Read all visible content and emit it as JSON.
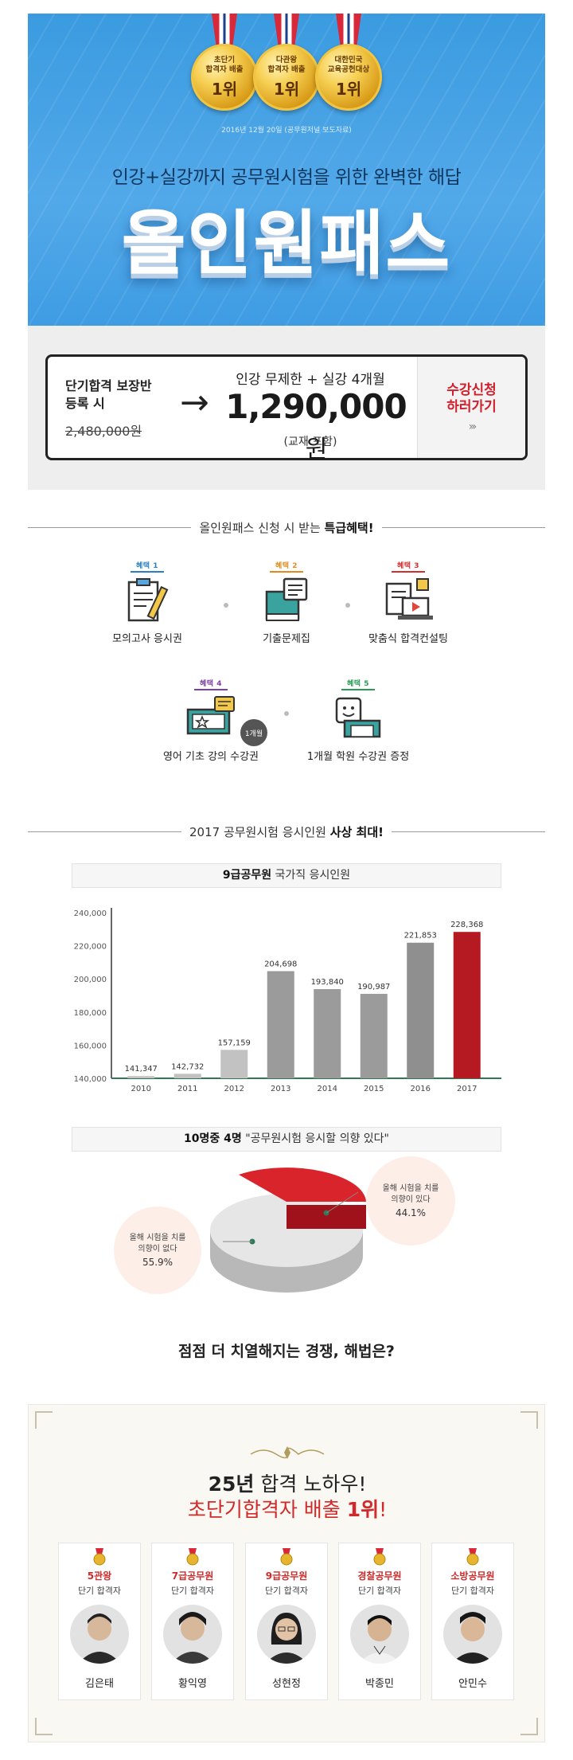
{
  "hero": {
    "medals": [
      {
        "text": "초단기\n합격자 배출",
        "rank": "1위"
      },
      {
        "text": "다관왕\n합격자 배출",
        "rank": "1위"
      },
      {
        "text": "대한민국\n교육공헌대상",
        "rank": "1위"
      }
    ],
    "note": "2016년 12월 20일 (공무원저널 보도자료)",
    "subtitle": "인강+실강까지 공무원시험을 위한 완벽한 해답",
    "title": "올인원패스"
  },
  "price": {
    "left_label": "단기합격 보장반\n등록 시",
    "old_price": "2,480,000원",
    "arrow": "→",
    "offer": "인강 무제한 + 실강 4개월",
    "new_price": "1,290,000",
    "unit": "원",
    "included": "(교재 포함)",
    "cta": "수강신청\n하러가기",
    "cta_arrows": "›››"
  },
  "benefits_header": {
    "pre": "올인원패스 신청 시 받는 ",
    "bold": "특급혜택!"
  },
  "benefits": [
    {
      "badge": "혜택 1",
      "label": "모의고사 응시권",
      "color": "#2b7fc3"
    },
    {
      "badge": "혜택 2",
      "label": "기출문제집",
      "color": "#e38a1f"
    },
    {
      "badge": "혜택 3",
      "label": "맞춤식 합격컨설팅",
      "color": "#d62d2d"
    },
    {
      "badge": "혜택 4",
      "label": "영어 기초 강의 수강권",
      "color": "#7b3fa6",
      "tag": "1개월"
    },
    {
      "badge": "혜택 5",
      "label": "1개월 학원 수강권 증정",
      "color": "#2a9a55"
    }
  ],
  "stats_header": {
    "pre": "2017 공무원시험 응시인원 ",
    "bold": "사상 최대!"
  },
  "bar_title": {
    "bold": "9급공무원",
    "rest": " 국가직 응시인원"
  },
  "chart_data": {
    "type": "bar",
    "categories": [
      "2010",
      "2011",
      "2012",
      "2013",
      "2014",
      "2015",
      "2016",
      "2017"
    ],
    "values": [
      141347,
      142732,
      157159,
      204698,
      193840,
      190987,
      221853,
      228368
    ],
    "value_labels": [
      "141,347",
      "142,732",
      "157,159",
      "204,698",
      "193,840",
      "190,987",
      "221,853",
      "228,368"
    ],
    "yticks": [
      "140,000",
      "160,000",
      "180,000",
      "200,000",
      "220,000",
      "240,000"
    ],
    "ylim": [
      140000,
      240000
    ],
    "highlight_color": "#b51a22",
    "bar_color": "#9b9b9b"
  },
  "pie_title": {
    "bold": "10명중 4명",
    "rest": " \"공무원시험 응시할 의향 있다\""
  },
  "pie": {
    "yes": {
      "label": "올해 시험을 치를\n의향이 있다",
      "pct": "44.1%",
      "value": 44.1,
      "color": "#d4202a"
    },
    "no": {
      "label": "올해 시험을 치를\n의향이 없다",
      "pct": "55.9%",
      "value": 55.9,
      "color": "#dcdcdc"
    }
  },
  "question": "점점 더 치열해지는 경쟁, 해법은?",
  "teachers": {
    "headline_bold": "25년",
    "headline_rest": " 합격 노하우!",
    "headline2_pre": "초단기합격자 배출 ",
    "headline2_bold": "1위",
    "headline2_post": "!",
    "cards": [
      {
        "cat": "5관왕",
        "sub": "단기 합격자",
        "name": "김은태"
      },
      {
        "cat": "7급공무원",
        "sub": "단기 합격자",
        "name": "황익영"
      },
      {
        "cat": "9급공무원",
        "sub": "단기 합격자",
        "name": "성현정"
      },
      {
        "cat": "경찰공무원",
        "sub": "단기 합격자",
        "name": "박종민"
      },
      {
        "cat": "소방공무원",
        "sub": "단기 합격자",
        "name": "안민수"
      }
    ]
  }
}
